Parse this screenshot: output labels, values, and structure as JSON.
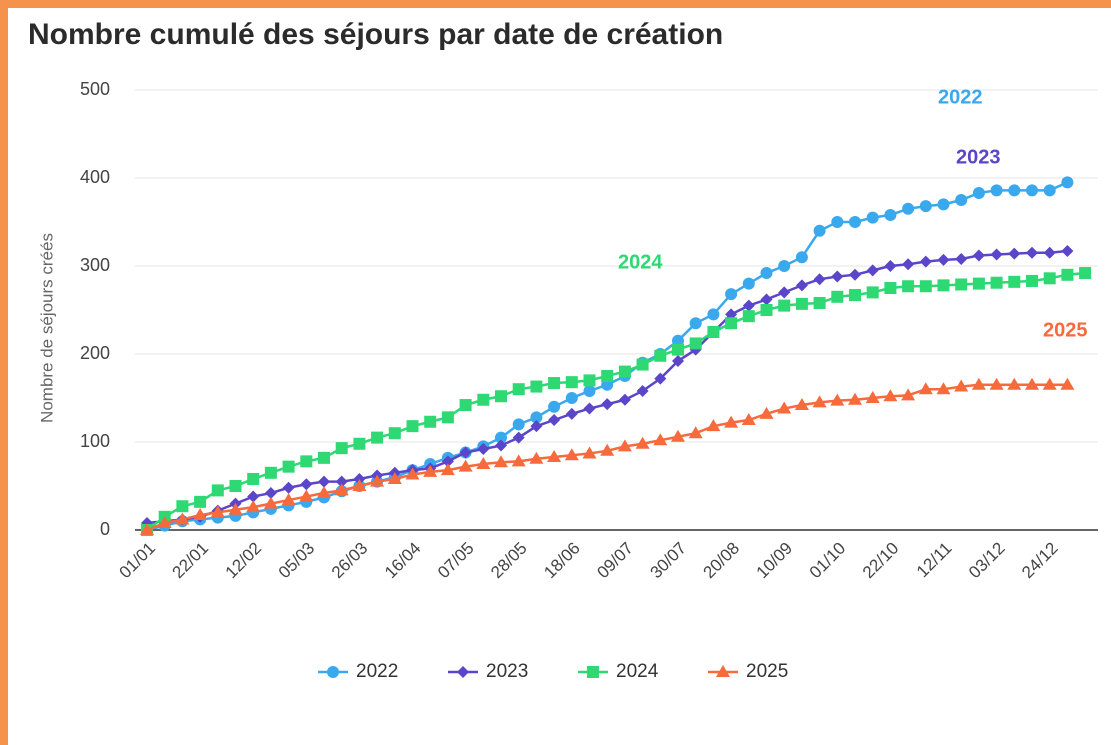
{
  "chart_data": {
    "type": "line",
    "title": "Nombre cumulé des séjours par date de création",
    "y_label": "Nombre de séjours créés",
    "categories": [
      "01/01",
      null,
      null,
      "22/01",
      null,
      null,
      "12/02",
      null,
      null,
      "05/03",
      null,
      null,
      "26/03",
      null,
      null,
      "16/04",
      null,
      null,
      "07/05",
      null,
      null,
      "28/05",
      null,
      null,
      "18/06",
      null,
      null,
      "09/07",
      null,
      null,
      "30/07",
      null,
      null,
      "20/08",
      null,
      null,
      "10/09",
      null,
      null,
      "01/10",
      null,
      null,
      "22/10",
      null,
      null,
      "12/11",
      null,
      null,
      "03/12",
      null,
      null,
      "24/12",
      null,
      null
    ],
    "ylim": [
      0,
      500
    ],
    "yticks": [
      0,
      100,
      200,
      300,
      400,
      500
    ],
    "grid": true,
    "series": [
      {
        "name": "2022",
        "color": "#3aa8ec",
        "marker": "circle",
        "values": [
          0,
          5,
          10,
          12,
          14,
          16,
          20,
          24,
          28,
          32,
          37,
          44,
          50,
          55,
          60,
          68,
          75,
          82,
          88,
          95,
          105,
          120,
          128,
          140,
          150,
          158,
          165,
          175,
          190,
          200,
          215,
          235,
          245,
          268,
          280,
          292,
          300,
          310,
          340,
          350,
          350,
          355,
          358,
          365,
          368,
          370,
          375,
          383,
          386,
          386,
          386,
          386,
          395,
          null
        ]
      },
      {
        "name": "2023",
        "color": "#5b45c9",
        "marker": "diamond",
        "values": [
          8,
          10,
          12,
          15,
          22,
          30,
          38,
          42,
          48,
          52,
          55,
          55,
          58,
          62,
          65,
          68,
          70,
          78,
          88,
          92,
          96,
          105,
          118,
          125,
          132,
          138,
          143,
          148,
          158,
          172,
          192,
          205,
          225,
          245,
          255,
          262,
          270,
          278,
          285,
          288,
          290,
          295,
          300,
          302,
          305,
          307,
          308,
          312,
          313,
          314,
          315,
          315,
          317,
          null
        ]
      },
      {
        "name": "2024",
        "color": "#2ed872",
        "marker": "square",
        "values": [
          0,
          15,
          27,
          32,
          45,
          50,
          58,
          65,
          72,
          78,
          82,
          93,
          98,
          105,
          110,
          118,
          123,
          128,
          142,
          148,
          152,
          160,
          163,
          167,
          168,
          170,
          175,
          180,
          188,
          198,
          205,
          212,
          225,
          235,
          243,
          250,
          255,
          257,
          258,
          265,
          267,
          270,
          275,
          277,
          277,
          278,
          279,
          280,
          281,
          282,
          283,
          286,
          290,
          292
        ]
      },
      {
        "name": "2025",
        "color": "#f76a3c",
        "marker": "triangle",
        "values": [
          0,
          8,
          12,
          17,
          20,
          23,
          26,
          30,
          34,
          38,
          42,
          45,
          50,
          55,
          58,
          63,
          66,
          68,
          72,
          75,
          77,
          78,
          81,
          83,
          85,
          87,
          90,
          95,
          98,
          102,
          106,
          110,
          118,
          122,
          125,
          132,
          138,
          142,
          145,
          147,
          148,
          150,
          152,
          153,
          160,
          160,
          163,
          165,
          165,
          165,
          165,
          165,
          165,
          null
        ]
      }
    ]
  }
}
